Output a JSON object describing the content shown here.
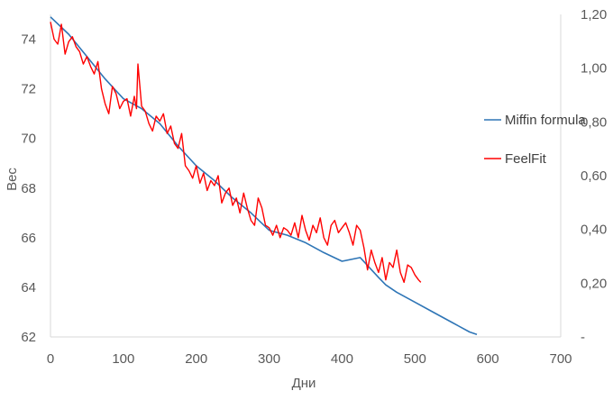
{
  "chart_data": {
    "type": "line",
    "xlabel": "Дни",
    "ylabel": "Вес",
    "xlim": [
      0,
      700
    ],
    "ylim": [
      62,
      75
    ],
    "y2lim": [
      0,
      1.2
    ],
    "x_ticks": [
      "0",
      "100",
      "200",
      "300",
      "400",
      "500",
      "600",
      "700"
    ],
    "x_tick_values": [
      0,
      100,
      200,
      300,
      400,
      500,
      600,
      700
    ],
    "y_ticks": [
      "62",
      "64",
      "66",
      "68",
      "70",
      "72",
      "74"
    ],
    "y_tick_values": [
      62,
      64,
      66,
      68,
      70,
      72,
      74
    ],
    "y2_ticks": [
      "-",
      "0,20",
      "0,40",
      "0,60",
      "0,80",
      "1,00",
      "1,20"
    ],
    "y2_tick_values": [
      0,
      0.2,
      0.4,
      0.6,
      0.8,
      1.0,
      1.2
    ],
    "grid": false,
    "legend_position": "right",
    "series": [
      {
        "name": "Miffin formula",
        "color": "#2E75B6",
        "x": [
          0,
          25,
          50,
          75,
          100,
          125,
          150,
          175,
          200,
          225,
          250,
          275,
          300,
          325,
          350,
          375,
          400,
          425,
          450,
          460,
          475,
          500,
          525,
          550,
          575,
          585
        ],
        "y": [
          74.9,
          74.2,
          73.3,
          72.4,
          71.6,
          71.2,
          70.6,
          69.7,
          68.9,
          68.3,
          67.6,
          67.0,
          66.3,
          66.1,
          65.8,
          65.4,
          65.05,
          65.2,
          64.4,
          64.1,
          63.8,
          63.4,
          63.0,
          62.6,
          62.2,
          62.1
        ]
      },
      {
        "name": "FeelFit",
        "color": "#FF0000",
        "x": [
          0,
          5,
          10,
          15,
          20,
          25,
          30,
          35,
          40,
          45,
          50,
          55,
          60,
          65,
          70,
          75,
          80,
          85,
          90,
          95,
          100,
          105,
          110,
          115,
          118,
          120,
          125,
          130,
          135,
          140,
          145,
          150,
          155,
          160,
          165,
          170,
          175,
          180,
          185,
          190,
          195,
          200,
          205,
          210,
          215,
          220,
          225,
          230,
          235,
          240,
          245,
          250,
          255,
          260,
          265,
          270,
          275,
          280,
          285,
          290,
          295,
          300,
          305,
          310,
          315,
          320,
          325,
          330,
          335,
          340,
          345,
          350,
          355,
          360,
          365,
          370,
          375,
          380,
          385,
          390,
          395,
          400,
          405,
          410,
          415,
          420,
          425,
          430,
          435,
          440,
          445,
          450,
          455,
          460,
          465,
          470,
          475,
          480,
          485,
          490,
          495,
          500,
          505,
          508
        ],
        "y": [
          74.7,
          74.0,
          73.8,
          74.6,
          73.4,
          73.9,
          74.1,
          73.7,
          73.5,
          73.0,
          73.3,
          72.9,
          72.6,
          73.1,
          72.0,
          71.4,
          71.0,
          72.1,
          71.8,
          71.2,
          71.5,
          71.6,
          70.9,
          71.7,
          71.2,
          73.0,
          71.3,
          71.1,
          70.6,
          70.3,
          70.9,
          70.7,
          71.0,
          70.2,
          70.5,
          69.8,
          69.6,
          70.2,
          68.9,
          68.7,
          68.4,
          68.9,
          68.2,
          68.6,
          67.9,
          68.3,
          68.1,
          68.5,
          67.4,
          67.8,
          68.0,
          67.3,
          67.6,
          67.0,
          67.8,
          67.2,
          66.7,
          66.5,
          67.6,
          67.2,
          66.5,
          66.4,
          66.1,
          66.5,
          66.0,
          66.4,
          66.3,
          66.1,
          66.6,
          66.0,
          66.9,
          66.3,
          65.9,
          66.5,
          66.2,
          66.8,
          66.0,
          65.7,
          66.5,
          66.7,
          66.2,
          66.4,
          66.6,
          66.2,
          65.7,
          66.5,
          66.3,
          65.6,
          64.7,
          65.5,
          65.0,
          64.6,
          65.2,
          64.3,
          65.0,
          64.8,
          65.5,
          64.6,
          64.2,
          64.9,
          64.8,
          64.5,
          64.3,
          64.2
        ]
      }
    ]
  }
}
